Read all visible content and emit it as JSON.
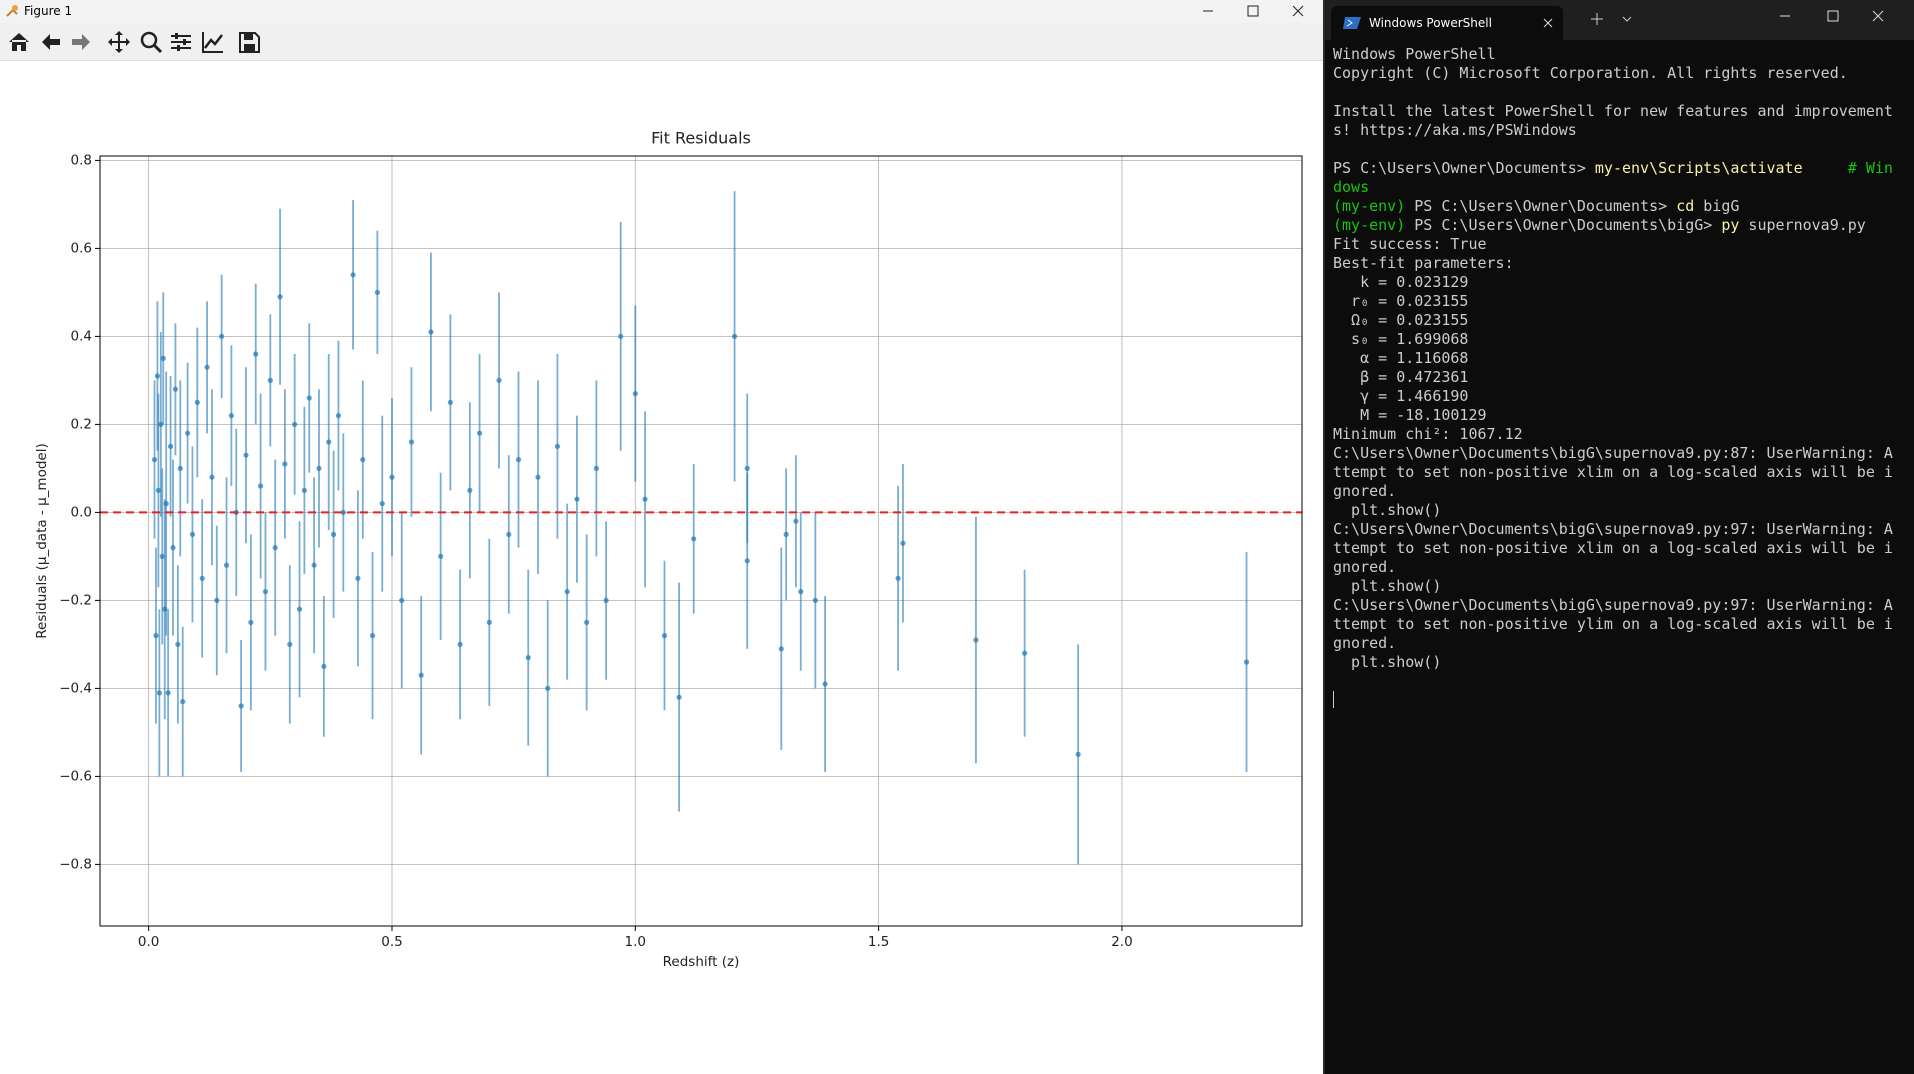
{
  "figure_window": {
    "title": "Figure 1"
  },
  "chart_data": {
    "type": "errorbar",
    "title": "Fit Residuals",
    "x_label": "Redshift (z)",
    "y_label": "Residuals (μ_data - μ_model)",
    "color": "#1f77b4",
    "grid": true,
    "reference_line": {
      "y": 0,
      "color": "#e8221f"
    },
    "xlim": [
      -0.1,
      2.37
    ],
    "ylim": [
      -0.94,
      0.81
    ],
    "xticks": [
      {
        "value": 0,
        "label": "0.0"
      },
      {
        "value": 0.5,
        "label": "0.5"
      },
      {
        "value": 1,
        "label": "1.0"
      },
      {
        "value": 1.5,
        "label": "1.5"
      },
      {
        "value": 2,
        "label": "2.0"
      }
    ],
    "yticks": [
      {
        "value": -0.8,
        "label": "−0.8"
      },
      {
        "value": -0.6,
        "label": "−0.6"
      },
      {
        "value": -0.4,
        "label": "−0.4"
      },
      {
        "value": -0.2,
        "label": "−0.2"
      },
      {
        "value": 0,
        "label": "0.0"
      },
      {
        "value": 0.2,
        "label": "0.2"
      },
      {
        "value": 0.4,
        "label": "0.4"
      },
      {
        "value": 0.6,
        "label": "0.6"
      },
      {
        "value": 0.8,
        "label": "0.8"
      }
    ],
    "x": [
      0.012,
      0.015,
      0.018,
      0.02,
      0.022,
      0.025,
      0.028,
      0.03,
      0.033,
      0.036,
      0.04,
      0.045,
      0.05,
      0.055,
      0.06,
      0.065,
      0.07,
      0.08,
      0.09,
      0.1,
      0.11,
      0.12,
      0.13,
      0.14,
      0.15,
      0.16,
      0.17,
      0.18,
      0.19,
      0.2,
      0.21,
      0.22,
      0.23,
      0.24,
      0.25,
      0.26,
      0.27,
      0.28,
      0.29,
      0.3,
      0.31,
      0.32,
      0.33,
      0.34,
      0.35,
      0.36,
      0.37,
      0.38,
      0.39,
      0.4,
      0.42,
      0.43,
      0.44,
      0.46,
      0.47,
      0.48,
      0.5,
      0.52,
      0.54,
      0.56,
      0.58,
      0.6,
      0.62,
      0.64,
      0.66,
      0.68,
      0.7,
      0.72,
      0.74,
      0.76,
      0.78,
      0.8,
      0.82,
      0.84,
      0.86,
      0.88,
      0.9,
      0.92,
      0.94,
      0.97,
      1.0,
      1.02,
      1.06,
      1.09,
      1.12,
      1.204,
      1.23,
      1.23,
      1.3,
      1.31,
      1.33,
      1.34,
      1.37,
      1.39,
      1.54,
      1.55,
      1.7,
      1.8,
      1.91,
      2.256
    ],
    "y": [
      0.12,
      -0.28,
      0.31,
      0.05,
      -0.41,
      0.2,
      -0.1,
      0.35,
      -0.22,
      0.02,
      -0.41,
      0.15,
      -0.08,
      0.28,
      -0.3,
      0.1,
      -0.43,
      0.18,
      -0.05,
      0.25,
      -0.15,
      0.33,
      0.08,
      -0.2,
      0.4,
      -0.12,
      0.22,
      0.0,
      -0.44,
      0.13,
      -0.25,
      0.36,
      0.06,
      -0.18,
      0.3,
      -0.08,
      0.49,
      0.11,
      -0.3,
      0.2,
      -0.22,
      0.05,
      0.26,
      -0.12,
      0.1,
      -0.35,
      0.16,
      -0.05,
      0.22,
      0.0,
      0.54,
      -0.15,
      0.12,
      -0.28,
      0.5,
      0.02,
      0.08,
      -0.2,
      0.16,
      -0.37,
      0.41,
      -0.1,
      0.25,
      -0.3,
      0.05,
      0.18,
      -0.25,
      0.3,
      -0.05,
      0.12,
      -0.33,
      0.08,
      -0.4,
      0.15,
      -0.18,
      0.03,
      -0.25,
      0.1,
      -0.2,
      0.4,
      0.27,
      0.03,
      -0.28,
      -0.42,
      -0.06,
      0.4,
      0.1,
      -0.11,
      -0.31,
      -0.05,
      -0.02,
      -0.18,
      -0.2,
      -0.39,
      -0.15,
      -0.07,
      -0.29,
      -0.32,
      -0.55,
      -0.34
    ],
    "yerr": [
      0.18,
      0.2,
      0.17,
      0.22,
      0.19,
      0.21,
      0.2,
      0.15,
      0.25,
      0.3,
      0.19,
      0.16,
      0.2,
      0.15,
      0.18,
      0.2,
      0.17,
      0.16,
      0.2,
      0.17,
      0.18,
      0.15,
      0.2,
      0.17,
      0.14,
      0.2,
      0.16,
      0.19,
      0.15,
      0.2,
      0.2,
      0.16,
      0.21,
      0.18,
      0.15,
      0.2,
      0.2,
      0.17,
      0.18,
      0.16,
      0.2,
      0.19,
      0.17,
      0.2,
      0.18,
      0.16,
      0.2,
      0.19,
      0.17,
      0.18,
      0.17,
      0.2,
      0.18,
      0.19,
      0.14,
      0.2,
      0.18,
      0.2,
      0.17,
      0.18,
      0.18,
      0.19,
      0.2,
      0.17,
      0.2,
      0.18,
      0.19,
      0.2,
      0.18,
      0.2,
      0.2,
      0.22,
      0.2,
      0.21,
      0.2,
      0.19,
      0.2,
      0.2,
      0.18,
      0.26,
      0.2,
      0.2,
      0.17,
      0.26,
      0.17,
      0.33,
      0.17,
      0.2,
      0.23,
      0.15,
      0.15,
      0.18,
      0.2,
      0.2,
      0.21,
      0.18,
      0.28,
      0.19,
      0.25,
      0.25
    ]
  },
  "terminal": {
    "tab_title": "Windows PowerShell",
    "blocks": [
      [
        "Windows PowerShell",
        "Copyright (C) Microsoft Corporation. All rights reserved."
      ],
      [
        "Install the latest PowerShell for new features and improvement",
        "s! https://aka.ms/PSWindows"
      ],
      [
        [
          {
            "t": "PS C:\\Users\\Owner\\Documents> "
          },
          {
            "t": "my-env\\Scripts\\activate",
            "c": "cmd"
          },
          {
            "t": "     # Win",
            "c": "comment"
          }
        ],
        [
          {
            "t": "dows",
            "c": "comment"
          }
        ],
        [
          {
            "t": "(my-env) ",
            "c": "comment"
          },
          {
            "t": "PS C:\\Users\\Owner\\Documents> "
          },
          {
            "t": "cd",
            "c": "cmd"
          },
          {
            "t": " bigG"
          }
        ],
        [
          {
            "t": "(my-env) ",
            "c": "comment"
          },
          {
            "t": "PS C:\\Users\\Owner\\Documents\\bigG> "
          },
          {
            "t": "py",
            "c": "cmd"
          },
          {
            "t": " supernova9.py"
          }
        ],
        "Fit success: True",
        "Best-fit parameters:",
        "   k = 0.023129",
        "  r₀ = 0.023155",
        "  Ω₀ = 0.023155",
        "  s₀ = 1.699068",
        "   α = 1.116068",
        "   β = 0.472361",
        "   γ = 1.466190",
        "   M = -18.100129",
        "Minimum chi²: 1067.12",
        "C:\\Users\\Owner\\Documents\\bigG\\supernova9.py:87: UserWarning: A",
        "ttempt to set non-positive xlim on a log-scaled axis will be i",
        "gnored.",
        "  plt.show()",
        "C:\\Users\\Owner\\Documents\\bigG\\supernova9.py:97: UserWarning: A",
        "ttempt to set non-positive xlim on a log-scaled axis will be i",
        "gnored.",
        "  plt.show()",
        "C:\\Users\\Owner\\Documents\\bigG\\supernova9.py:97: UserWarning: A",
        "ttempt to set non-positive ylim on a log-scaled axis will be i",
        "gnored.",
        "  plt.show()"
      ]
    ]
  }
}
